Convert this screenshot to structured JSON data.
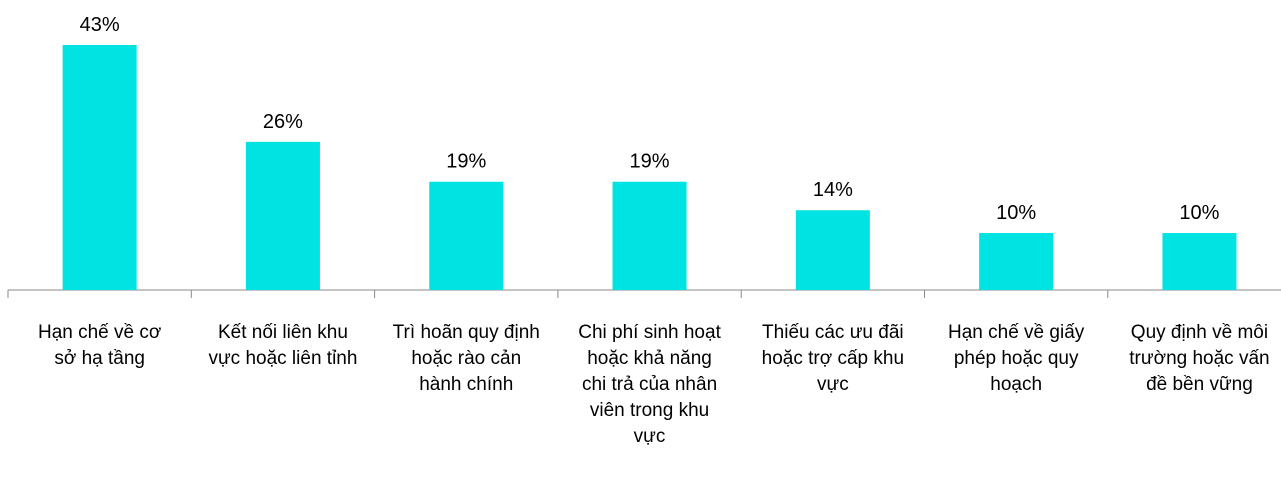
{
  "chart_data": {
    "type": "bar",
    "categories": [
      "Hạn chế về cơ sở hạ tầng",
      "Kết nối liên khu vực hoặc liên tỉnh",
      "Trì hoãn quy định hoặc rào cản hành chính",
      "Chi phí sinh hoạt hoặc khả năng chi trả của nhân viên trong khu vực",
      "Thiếu các ưu đãi hoặc trợ cấp khu vực",
      "Hạn chế về giấy phép hoặc quy hoạch",
      "Quy định về môi trường hoặc vấn đề bền vững"
    ],
    "values": [
      43,
      26,
      19,
      19,
      14,
      10,
      10
    ],
    "value_labels": [
      "43%",
      "26%",
      "19%",
      "19%",
      "14%",
      "10%",
      "10%"
    ],
    "color": "#00e3e3"
  }
}
